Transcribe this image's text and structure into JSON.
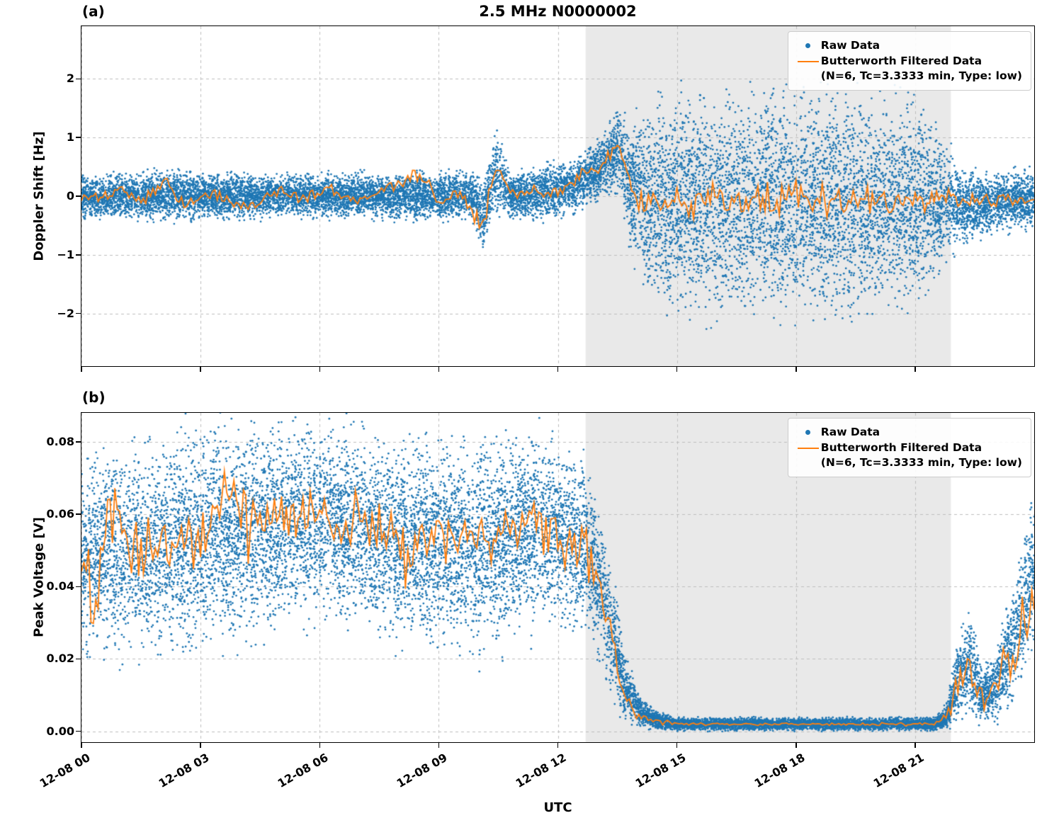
{
  "figure": {
    "title": "2.5 MHz N0000002",
    "xlabel": "UTC",
    "panel_a_tag": "(a)",
    "panel_b_tag": "(b)"
  },
  "legend": {
    "raw_label": "Raw Data",
    "filtered_label": "Butterworth Filtered Data",
    "filtered_params": "(N=6, Tc=3.3333 min, Type: low)"
  },
  "colors": {
    "raw": "#1f77b4",
    "filtered": "#ff7f0e",
    "shaded_region": "#e9e9e9",
    "grid": "#bdbdbd"
  },
  "chart_data": [
    {
      "type": "scatter+line",
      "panel": "a",
      "title": "2.5 MHz N0000002",
      "xlabel": "UTC",
      "ylabel": "Doppler Shift [Hz]",
      "xlim_hours": [
        0,
        24
      ],
      "ylim": [
        -2.9,
        2.9
      ],
      "x_tick_hours": [
        0,
        3,
        6,
        9,
        12,
        15,
        18,
        21
      ],
      "x_tick_labels": [
        "12-08 00",
        "12-08 03",
        "12-08 06",
        "12-08 09",
        "12-08 12",
        "12-08 15",
        "12-08 18",
        "12-08 21"
      ],
      "y_ticks": [
        -2,
        -1,
        0,
        1,
        2
      ],
      "y_tick_labels": [
        "−2",
        "−1",
        "0",
        "1",
        "2"
      ],
      "grid": true,
      "legend_position": "upper right",
      "shaded_region_hours": [
        12.7,
        21.9
      ],
      "seed": 7,
      "raw_point_count": 15000,
      "series": {
        "raw_envelope": {
          "comment": "blue raw scatter cloud: center and half-width of point band vs UTC hour on 12-08",
          "hours": [
            0,
            2,
            5,
            9,
            9.9,
            10.1,
            10.45,
            10.8,
            12.4,
            13.0,
            13.55,
            13.8,
            14.2,
            15,
            17,
            19,
            21.2,
            21.8,
            22.2,
            23,
            24
          ],
          "center": [
            0,
            0,
            0,
            0,
            0,
            -0.3,
            0.4,
            0,
            0.15,
            0.45,
            0.85,
            0.2,
            -0.1,
            -0.15,
            -0.1,
            -0.1,
            -0.1,
            -0.1,
            -0.2,
            -0.1,
            -0.05
          ],
          "half_width": [
            0.3,
            0.35,
            0.3,
            0.35,
            0.35,
            0.5,
            0.55,
            0.35,
            0.4,
            0.45,
            0.6,
            0.9,
            1.3,
            1.55,
            1.6,
            1.6,
            1.5,
            0.8,
            0.55,
            0.4,
            0.45
          ]
        },
        "filtered": {
          "comment": "orange Butterworth low-pass line: mean value and wiggle amplitude vs UTC hour",
          "hours": [
            0,
            0.5,
            1,
            1.5,
            2.1,
            2.6,
            3.2,
            3.8,
            4.3,
            5,
            5.6,
            6.2,
            6.8,
            7.4,
            8,
            8.5,
            9,
            9.5,
            10.1,
            10.45,
            10.8,
            11.3,
            11.9,
            12.4,
            12.8,
            13.2,
            13.55,
            13.75,
            13.95,
            14.3,
            15,
            16,
            17,
            18,
            19,
            20,
            21,
            21.6,
            22,
            22.7,
            23.4,
            24
          ],
          "values": [
            0,
            -0.05,
            0.1,
            -0.1,
            0.3,
            -0.15,
            0.05,
            -0.1,
            -0.2,
            0.1,
            -0.05,
            0.15,
            -0.1,
            0.05,
            0.2,
            0.35,
            -0.05,
            0.1,
            -0.55,
            0.5,
            0.05,
            0.1,
            0.05,
            0.25,
            0.4,
            0.65,
            0.95,
            0.35,
            -0.05,
            -0.1,
            -0.05,
            -0.05,
            -0.1,
            -0.05,
            -0.1,
            -0.05,
            -0.05,
            0,
            -0.05,
            -0.1,
            -0.05,
            -0.1
          ],
          "wiggle": [
            0.08,
            0.08,
            0.1,
            0.1,
            0.1,
            0.1,
            0.08,
            0.08,
            0.08,
            0.08,
            0.08,
            0.1,
            0.08,
            0.08,
            0.1,
            0.12,
            0.1,
            0.1,
            0.12,
            0.15,
            0.1,
            0.08,
            0.08,
            0.1,
            0.1,
            0.12,
            0.1,
            0.15,
            0.15,
            0.2,
            0.22,
            0.25,
            0.25,
            0.25,
            0.25,
            0.25,
            0.22,
            0.15,
            0.1,
            0.1,
            0.08,
            0.08
          ]
        }
      }
    },
    {
      "type": "scatter+line",
      "panel": "b",
      "xlabel": "UTC",
      "ylabel": "Peak Voltage [V]",
      "xlim_hours": [
        0,
        24
      ],
      "ylim": [
        -0.003,
        0.088
      ],
      "x_tick_hours": [
        0,
        3,
        6,
        9,
        12,
        15,
        18,
        21
      ],
      "x_tick_labels": [
        "12-08 00",
        "12-08 03",
        "12-08 06",
        "12-08 09",
        "12-08 12",
        "12-08 15",
        "12-08 18",
        "12-08 21"
      ],
      "y_ticks": [
        0,
        0.02,
        0.04,
        0.06,
        0.08
      ],
      "y_tick_labels": [
        "0.00",
        "0.02",
        "0.04",
        "0.06",
        "0.08"
      ],
      "grid": true,
      "legend_position": "upper right",
      "shaded_region_hours": [
        12.7,
        21.9
      ],
      "seed": 11,
      "raw_point_count": 15000,
      "series": {
        "raw_envelope": {
          "comment": "blue raw scatter cloud: center and half-width of point band vs UTC hour on 12-08",
          "hours": [
            0,
            1,
            2,
            3,
            4,
            5,
            6,
            7,
            8,
            9,
            10,
            11,
            12,
            12.8,
            13.3,
            13.7,
            14.1,
            14.5,
            15,
            18,
            21.5,
            21.8,
            22.1,
            22.4,
            22.7,
            23,
            23.5,
            24
          ],
          "center": [
            0.048,
            0.05,
            0.05,
            0.054,
            0.055,
            0.057,
            0.058,
            0.057,
            0.052,
            0.053,
            0.051,
            0.055,
            0.055,
            0.05,
            0.03,
            0.012,
            0.005,
            0.003,
            0.002,
            0.002,
            0.002,
            0.004,
            0.015,
            0.018,
            0.01,
            0.012,
            0.025,
            0.045
          ],
          "half_width": [
            0.022,
            0.024,
            0.025,
            0.025,
            0.025,
            0.022,
            0.022,
            0.022,
            0.024,
            0.024,
            0.024,
            0.023,
            0.022,
            0.02,
            0.015,
            0.008,
            0.003,
            0.002,
            0.0015,
            0.0015,
            0.0015,
            0.003,
            0.01,
            0.012,
            0.007,
            0.008,
            0.013,
            0.018
          ]
        },
        "filtered": {
          "comment": "orange Butterworth low-pass line: mean value and wiggle amplitude vs UTC hour",
          "hours": [
            0,
            0.3,
            0.6,
            0.9,
            1.2,
            1.6,
            2,
            2.5,
            3,
            3.7,
            4.2,
            4.8,
            5.4,
            6,
            6.5,
            7,
            7.7,
            8.3,
            9,
            9.7,
            10.3,
            11,
            11.5,
            12,
            12.6,
            13,
            13.3,
            13.6,
            14,
            14.4,
            15,
            16,
            17,
            18,
            19,
            20,
            21,
            21.5,
            21.8,
            22.1,
            22.4,
            22.7,
            23,
            23.4,
            23.7,
            24
          ],
          "values": [
            0.05,
            0.038,
            0.055,
            0.065,
            0.048,
            0.052,
            0.05,
            0.055,
            0.052,
            0.068,
            0.055,
            0.06,
            0.058,
            0.062,
            0.056,
            0.06,
            0.054,
            0.047,
            0.056,
            0.052,
            0.05,
            0.056,
            0.06,
            0.055,
            0.052,
            0.045,
            0.03,
            0.012,
            0.004,
            0.003,
            0.002,
            0.002,
            0.002,
            0.002,
            0.002,
            0.002,
            0.002,
            0.002,
            0.004,
            0.014,
            0.02,
            0.008,
            0.011,
            0.02,
            0.028,
            0.04
          ],
          "wiggle": [
            0.008,
            0.01,
            0.009,
            0.008,
            0.008,
            0.007,
            0.007,
            0.007,
            0.007,
            0.007,
            0.007,
            0.006,
            0.006,
            0.006,
            0.007,
            0.006,
            0.006,
            0.007,
            0.007,
            0.006,
            0.007,
            0.007,
            0.007,
            0.007,
            0.007,
            0.005,
            0.004,
            0.003,
            0.001,
            0.0008,
            0.0004,
            0.0003,
            0.0003,
            0.0003,
            0.0003,
            0.0003,
            0.0004,
            0.0006,
            0.001,
            0.005,
            0.006,
            0.003,
            0.004,
            0.006,
            0.007,
            0.008
          ]
        }
      }
    }
  ]
}
